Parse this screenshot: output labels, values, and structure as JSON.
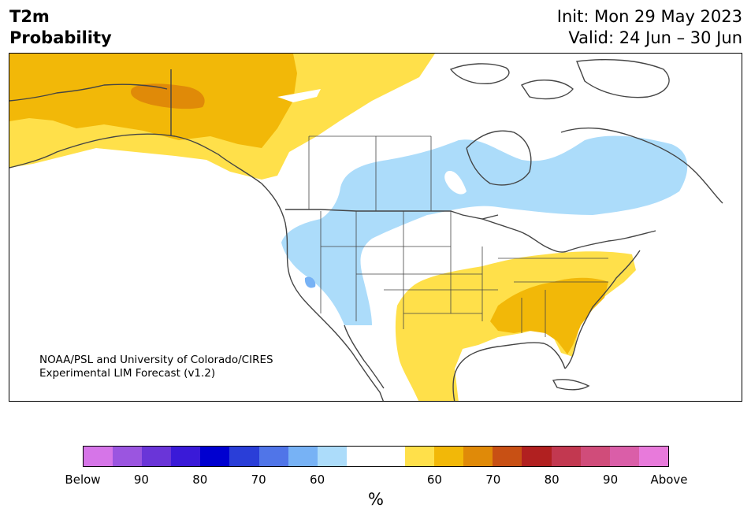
{
  "header": {
    "title_line1": "T2m",
    "title_line2": "Probability",
    "init": "Init: Mon 29 May 2023",
    "valid": "Valid: 24 Jun – 30 Jun"
  },
  "credit": {
    "line1": "NOAA/PSL and University of Colorado/CIRES",
    "line2": "Experimental LIM Forecast (v1.2)"
  },
  "legend": {
    "colors": [
      "#d675e8",
      "#9b55e0",
      "#6a35d8",
      "#3a1ad8",
      "#0000d0",
      "#2a3ed8",
      "#5075e8",
      "#77b2f5",
      "#acdcfa",
      "#ffffff",
      "#ffffff",
      "#ffe04a",
      "#f2b808",
      "#e08a08",
      "#c85014",
      "#b12020",
      "#c23850",
      "#d04c7a",
      "#da5ea8",
      "#e87adb"
    ],
    "tick_labels": [
      "Below",
      "90",
      "80",
      "70",
      "60",
      "60",
      "70",
      "80",
      "90",
      "Above"
    ],
    "unit": "%"
  },
  "map": {
    "region": "North America",
    "category_colors": {
      "above_50": "#ffe04a",
      "above_60": "#f2b808",
      "above_70": "#e08a08",
      "below_50": "#acdcfa",
      "below_60": "#77b2f5",
      "land_lines": "#444444"
    }
  }
}
